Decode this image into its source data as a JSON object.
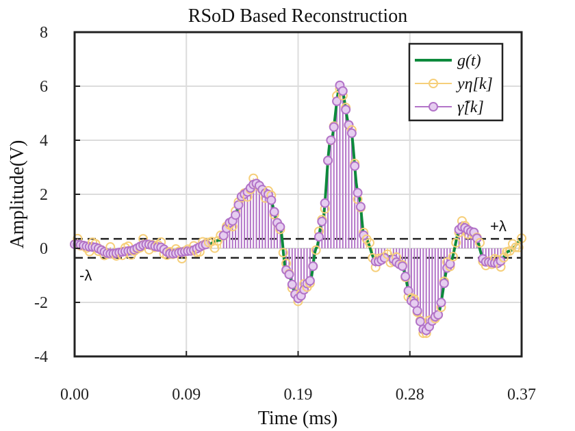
{
  "chart_data": {
    "type": "line",
    "title": "RSoD Based Reconstruction",
    "xlabel": "Time (ms)",
    "ylabel": "Amplitude(V)",
    "xlim": [
      0,
      0.37
    ],
    "ylim": [
      -4,
      8
    ],
    "xticks": [
      0,
      0.0925,
      0.185,
      0.2775,
      0.37
    ],
    "xtick_labels": [
      "0.00",
      "0.09",
      "0.19",
      "0.28",
      "0.37"
    ],
    "yticks": [
      -4,
      -2,
      0,
      2,
      4,
      6,
      8
    ],
    "ytick_labels": [
      "-4",
      "-2",
      "0",
      "2",
      "4",
      "6",
      "8"
    ],
    "grid": true,
    "legend_position": "top-right",
    "colors": {
      "g": "#0d8a3c",
      "y": "#f6cf7a",
      "gamma": "#b273c8",
      "threshold": "#222222"
    },
    "thresholds": {
      "plus": 0.35,
      "minus": -0.35,
      "plus_label": "+λ",
      "minus_label": "-λ"
    },
    "legend": [
      {
        "key": "g",
        "label": "g(t)"
      },
      {
        "key": "y",
        "label": "yη[k]"
      },
      {
        "key": "gamma",
        "label": "γ̃[k]"
      }
    ],
    "segments": [
      {
        "x": 0.0,
        "y": 0.15
      },
      {
        "x": 0.015,
        "y": 0.05
      },
      {
        "x": 0.03,
        "y": -0.2
      },
      {
        "x": 0.045,
        "y": -0.1
      },
      {
        "x": 0.06,
        "y": 0.15
      },
      {
        "x": 0.07,
        "y": 0.05
      },
      {
        "x": 0.08,
        "y": -0.2
      },
      {
        "x": 0.095,
        "y": -0.1
      },
      {
        "x": 0.11,
        "y": 0.15
      },
      {
        "x": 0.12,
        "y": 0.3
      },
      {
        "x": 0.13,
        "y": 1.0
      },
      {
        "x": 0.14,
        "y": 2.0
      },
      {
        "x": 0.15,
        "y": 2.4
      },
      {
        "x": 0.16,
        "y": 2.0
      },
      {
        "x": 0.17,
        "y": 0.8
      },
      {
        "x": 0.175,
        "y": -0.8
      },
      {
        "x": 0.185,
        "y": -1.85
      },
      {
        "x": 0.195,
        "y": -1.2
      },
      {
        "x": 0.2,
        "y": 0.0
      },
      {
        "x": 0.205,
        "y": 1.0
      },
      {
        "x": 0.212,
        "y": 4.0
      },
      {
        "x": 0.22,
        "y": 6.05
      },
      {
        "x": 0.228,
        "y": 4.5
      },
      {
        "x": 0.235,
        "y": 2.0
      },
      {
        "x": 0.24,
        "y": 0.4
      },
      {
        "x": 0.25,
        "y": -0.5
      },
      {
        "x": 0.26,
        "y": -0.3
      },
      {
        "x": 0.27,
        "y": -0.6
      },
      {
        "x": 0.28,
        "y": -2.0
      },
      {
        "x": 0.29,
        "y": -3.05
      },
      {
        "x": 0.3,
        "y": -2.5
      },
      {
        "x": 0.31,
        "y": -0.6
      },
      {
        "x": 0.32,
        "y": 0.8
      },
      {
        "x": 0.33,
        "y": 0.6
      },
      {
        "x": 0.34,
        "y": -0.5
      },
      {
        "x": 0.35,
        "y": -0.55
      },
      {
        "x": 0.36,
        "y": -0.1
      },
      {
        "x": 0.37,
        "y": 0.3
      }
    ]
  }
}
